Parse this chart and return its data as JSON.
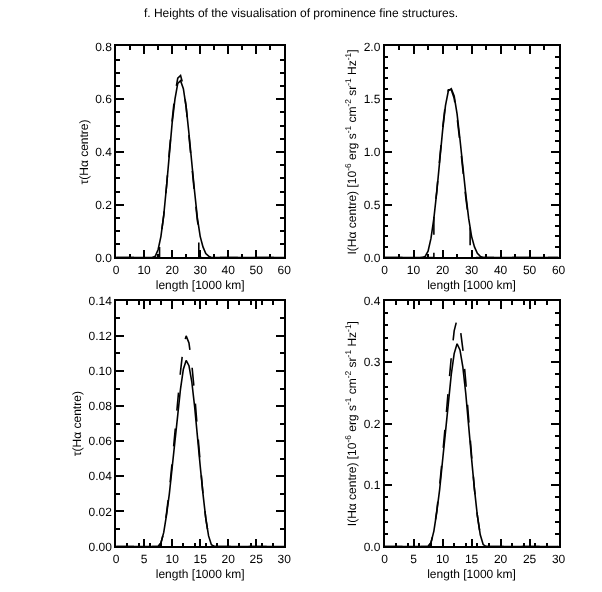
{
  "chart_data": [
    {
      "type": "line",
      "title": "f. Heights of the visualisation of prominence fine structures.",
      "xlabel": "length [1000 km]",
      "ylabel": "τ(Hα centre)",
      "xlim": [
        0,
        60
      ],
      "xticks": [
        0,
        10,
        20,
        30,
        40,
        50,
        60
      ],
      "ylim": [
        0,
        0.8
      ],
      "yticks": [
        {
          "value": 0,
          "label": "0.0"
        },
        0.2,
        0.4,
        0.6,
        0.8
      ],
      "series": [
        {
          "color": "#000000",
          "line_style": "solid",
          "x": [
            0,
            10,
            13,
            14,
            15,
            16,
            17,
            18,
            19,
            20,
            21,
            22,
            23,
            24,
            25,
            26,
            27,
            28,
            29,
            30,
            31,
            32,
            33,
            34,
            40,
            60
          ],
          "values": [
            0,
            0,
            0,
            0.005,
            0.03,
            0.08,
            0.16,
            0.27,
            0.39,
            0.51,
            0.6,
            0.66,
            0.67,
            0.64,
            0.57,
            0.47,
            0.36,
            0.25,
            0.15,
            0.08,
            0.04,
            0.015,
            0.005,
            0,
            0,
            0
          ]
        },
        {
          "color": "#000000",
          "line_style": "dashed",
          "x": [
            0,
            15.5,
            15.5,
            16,
            17,
            18,
            19,
            20,
            21,
            22,
            23,
            24,
            25,
            26,
            27,
            28,
            29,
            29.5,
            29.5,
            60
          ],
          "values": [
            0,
            0,
            0.05,
            0.08,
            0.16,
            0.27,
            0.4,
            0.52,
            0.62,
            0.68,
            0.69,
            0.65,
            0.57,
            0.46,
            0.35,
            0.24,
            0.14,
            0.11,
            0,
            0
          ]
        }
      ]
    },
    {
      "type": "line",
      "xlabel": "length [1000 km]",
      "ylabel": "I(Hα centre) [10$^{-6}$ erg s$^{-1}$ cm$^{-2}$ sr$^{-1}$ Hz$^{-1}$]",
      "xlim": [
        0,
        60
      ],
      "xticks": [
        0,
        10,
        20,
        30,
        40,
        50,
        60
      ],
      "ylim": [
        0,
        2.0
      ],
      "yticks": [
        {
          "value": 0,
          "label": "0.0"
        },
        0.5,
        {
          "value": 1,
          "label": "1.0"
        },
        1.5,
        {
          "value": 2,
          "label": "2.0"
        }
      ],
      "series": [
        {
          "color": "#000000",
          "line_style": "solid",
          "x": [
            0,
            10,
            13,
            14,
            15,
            16,
            17,
            18,
            19,
            20,
            21,
            22,
            23,
            24,
            25,
            26,
            27,
            28,
            29,
            30,
            31,
            32,
            33,
            34,
            40,
            60
          ],
          "values": [
            0,
            0,
            0,
            0.01,
            0.06,
            0.18,
            0.37,
            0.62,
            0.91,
            1.2,
            1.44,
            1.58,
            1.6,
            1.53,
            1.36,
            1.12,
            0.86,
            0.6,
            0.37,
            0.2,
            0.1,
            0.04,
            0.01,
            0,
            0,
            0
          ]
        },
        {
          "color": "#000000",
          "line_style": "dashed",
          "x": [
            0,
            17,
            17,
            18,
            19,
            20,
            21,
            22,
            23,
            24,
            25,
            26,
            27,
            28,
            29,
            29.5,
            29.5,
            60
          ],
          "values": [
            0,
            0,
            0.38,
            0.63,
            0.93,
            1.22,
            1.46,
            1.59,
            1.59,
            1.51,
            1.33,
            1.09,
            0.83,
            0.57,
            0.36,
            0.28,
            0,
            0
          ]
        }
      ]
    },
    {
      "type": "line",
      "xlabel": "length [1000 km]",
      "ylabel": "τ(Hα centre)",
      "xlim": [
        0,
        30
      ],
      "xticks": [
        0,
        5,
        10,
        15,
        20,
        25,
        30
      ],
      "ylim": [
        0,
        0.14
      ],
      "yticks": [
        {
          "value": 0,
          "label": "0.00"
        },
        0.02,
        0.04,
        0.06,
        0.08,
        {
          "value": 0.1,
          "label": "0.10"
        },
        0.12,
        0.14
      ],
      "series": [
        {
          "color": "#000000",
          "line_style": "solid",
          "x": [
            0,
            7.5,
            8,
            8.5,
            9,
            9.5,
            10,
            10.5,
            11,
            11.5,
            12,
            12.5,
            13,
            13.5,
            14,
            14.5,
            15,
            15.5,
            16,
            16.5,
            17,
            17.5,
            30
          ],
          "values": [
            0,
            0,
            0.002,
            0.008,
            0.018,
            0.03,
            0.045,
            0.06,
            0.075,
            0.09,
            0.101,
            0.106,
            0.103,
            0.094,
            0.08,
            0.063,
            0.046,
            0.03,
            0.016,
            0.006,
            0.001,
            0,
            0
          ]
        },
        {
          "color": "#000000",
          "line_style": "dashed",
          "x": [
            0,
            7.5,
            8,
            8.5,
            9,
            9.5,
            10,
            10.5,
            11,
            11.5,
            12,
            12.5,
            13,
            13.5,
            14,
            14.5,
            15,
            15.5,
            16,
            16.5,
            17,
            17.5,
            30
          ],
          "values": [
            0,
            0,
            0.002,
            0.008,
            0.019,
            0.032,
            0.048,
            0.065,
            0.083,
            0.1,
            0.114,
            0.12,
            0.116,
            0.104,
            0.087,
            0.067,
            0.048,
            0.03,
            0.016,
            0.006,
            0.001,
            0,
            0
          ]
        }
      ]
    },
    {
      "type": "line",
      "xlabel": "length [1000 km]",
      "ylabel": "I(Hα centre) [10$^{-6}$ erg s$^{-1}$ cm$^{-2}$ sr$^{-1}$ Hz$^{-1}$]",
      "xlim": [
        0,
        30
      ],
      "xticks": [
        0,
        5,
        10,
        15,
        20,
        25,
        30
      ],
      "ylim": [
        0,
        0.4
      ],
      "yticks": [
        {
          "value": 0,
          "label": "0.0"
        },
        0.1,
        0.2,
        0.3,
        0.4
      ],
      "series": [
        {
          "color": "#000000",
          "line_style": "solid",
          "x": [
            0,
            7.5,
            8,
            8.5,
            9,
            9.5,
            10,
            10.5,
            11,
            11.5,
            12,
            12.5,
            13,
            13.5,
            14,
            14.5,
            15,
            15.5,
            16,
            16.5,
            17,
            17.5,
            30
          ],
          "values": [
            0,
            0,
            0.006,
            0.025,
            0.056,
            0.093,
            0.14,
            0.186,
            0.233,
            0.28,
            0.314,
            0.33,
            0.32,
            0.292,
            0.249,
            0.196,
            0.143,
            0.093,
            0.05,
            0.019,
            0.003,
            0,
            0
          ]
        },
        {
          "color": "#000000",
          "line_style": "dashed",
          "x": [
            0,
            7.5,
            8,
            8.5,
            9,
            9.5,
            10,
            10.5,
            11,
            11.5,
            12,
            12.5,
            13,
            13.5,
            14,
            14.5,
            15,
            15.5,
            16,
            16.5,
            17,
            17.5,
            30
          ],
          "values": [
            0,
            0,
            0.006,
            0.025,
            0.058,
            0.099,
            0.148,
            0.2,
            0.256,
            0.308,
            0.351,
            0.37,
            0.358,
            0.321,
            0.268,
            0.207,
            0.148,
            0.093,
            0.05,
            0.019,
            0.003,
            0,
            0
          ]
        }
      ]
    }
  ]
}
